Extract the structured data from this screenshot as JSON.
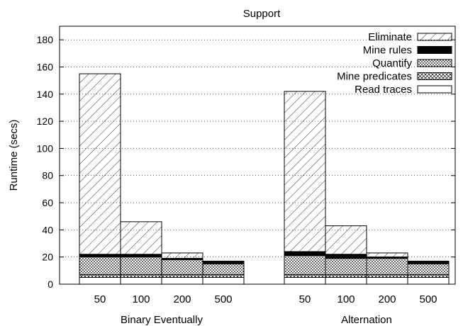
{
  "chart_data": {
    "type": "bar",
    "subtype": "stacked",
    "title": "Support",
    "ylabel": "Runtime (secs)",
    "ylim": [
      0,
      190
    ],
    "yticks": [
      0,
      20,
      40,
      60,
      80,
      100,
      120,
      140,
      160,
      180
    ],
    "grid": "horizontal-dotted",
    "legend_position": "top-right",
    "groups": [
      {
        "label": "Binary Eventually",
        "categories": [
          "50",
          "100",
          "200",
          "500"
        ],
        "stacks": {
          "Read traces": [
            5,
            5,
            5,
            5
          ],
          "Mine predicates": [
            2,
            2,
            2,
            2
          ],
          "Quantify": [
            13,
            13,
            11,
            8
          ],
          "Mine rules": [
            2,
            2,
            1,
            2
          ],
          "Eliminate": [
            133,
            24,
            4,
            0
          ]
        }
      },
      {
        "label": "Alternation",
        "categories": [
          "50",
          "100",
          "200",
          "500"
        ],
        "stacks": {
          "Read traces": [
            5,
            5,
            5,
            5
          ],
          "Mine predicates": [
            2,
            2,
            2,
            2
          ],
          "Quantify": [
            14,
            12,
            12,
            8
          ],
          "Mine rules": [
            3,
            3,
            1,
            2
          ],
          "Eliminate": [
            118,
            21,
            3,
            0
          ]
        }
      }
    ],
    "legend": [
      {
        "name": "Eliminate",
        "pattern": "diag-sparse"
      },
      {
        "name": "Mine rules",
        "pattern": "solid-black"
      },
      {
        "name": "Quantify",
        "pattern": "dots"
      },
      {
        "name": "Mine predicates",
        "pattern": "crosshatch"
      },
      {
        "name": "Read traces",
        "pattern": "empty"
      }
    ],
    "stack_order": [
      "Read traces",
      "Mine predicates",
      "Quantify",
      "Mine rules",
      "Eliminate"
    ]
  }
}
